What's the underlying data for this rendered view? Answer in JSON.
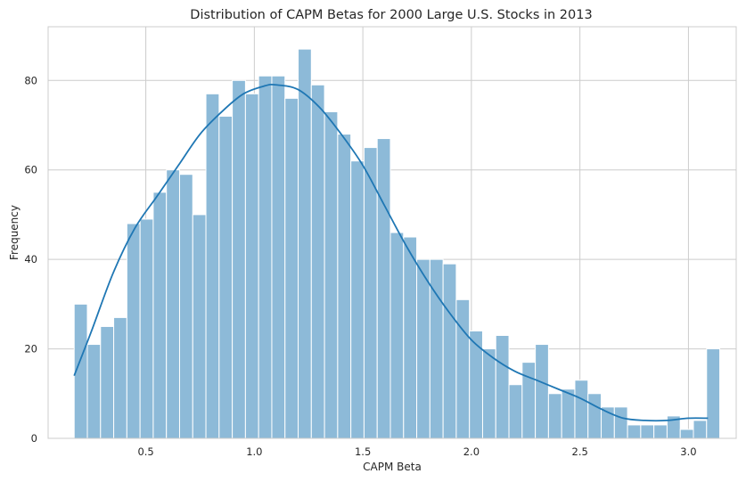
{
  "chart_data": {
    "type": "bar",
    "subtype": "histogram with KDE",
    "title": "Distribution of CAPM Betas for 2000 Large U.S. Stocks in 2013",
    "xlabel": "CAPM Beta",
    "ylabel": "Frequency",
    "xlim": [
      0.05,
      3.22
    ],
    "ylim": [
      0,
      92
    ],
    "xticks": [
      0.5,
      1.0,
      1.5,
      2.0,
      2.5,
      3.0
    ],
    "xtick_labels": [
      "0.5",
      "1.0",
      "1.5",
      "2.0",
      "2.5",
      "3.0"
    ],
    "yticks": [
      0,
      20,
      40,
      60,
      80
    ],
    "ytick_labels": [
      "0",
      "20",
      "40",
      "60",
      "80"
    ],
    "grid": true,
    "bin_start": 0.17,
    "bin_width": 0.0607,
    "values": [
      30,
      21,
      25,
      27,
      48,
      49,
      55,
      60,
      59,
      50,
      77,
      72,
      80,
      77,
      81,
      81,
      76,
      87,
      79,
      73,
      68,
      62,
      65,
      67,
      46,
      45,
      40,
      40,
      39,
      31,
      24,
      20,
      23,
      12,
      17,
      21,
      10,
      11,
      13,
      10,
      7,
      7,
      3,
      3,
      3,
      5,
      2,
      4,
      20
    ],
    "kde": {
      "x": [
        0.17,
        0.25,
        0.35,
        0.45,
        0.55,
        0.65,
        0.75,
        0.85,
        0.95,
        1.05,
        1.1,
        1.2,
        1.3,
        1.4,
        1.5,
        1.6,
        1.7,
        1.8,
        1.9,
        2.0,
        2.1,
        2.2,
        2.3,
        2.4,
        2.5,
        2.6,
        2.7,
        2.8,
        2.9,
        3.0,
        3.09
      ],
      "y": [
        14,
        24,
        37,
        47,
        54,
        61,
        68,
        73,
        77,
        78.8,
        79,
        78,
        74,
        68,
        61,
        52,
        43,
        35,
        28,
        22,
        18,
        15,
        13,
        11,
        9,
        6.5,
        4.5,
        4,
        4,
        4.5,
        4.5
      ]
    },
    "colors": {
      "bars": "#8dbad8",
      "kde": "#1f77b4",
      "grid": "#cccccc"
    }
  }
}
